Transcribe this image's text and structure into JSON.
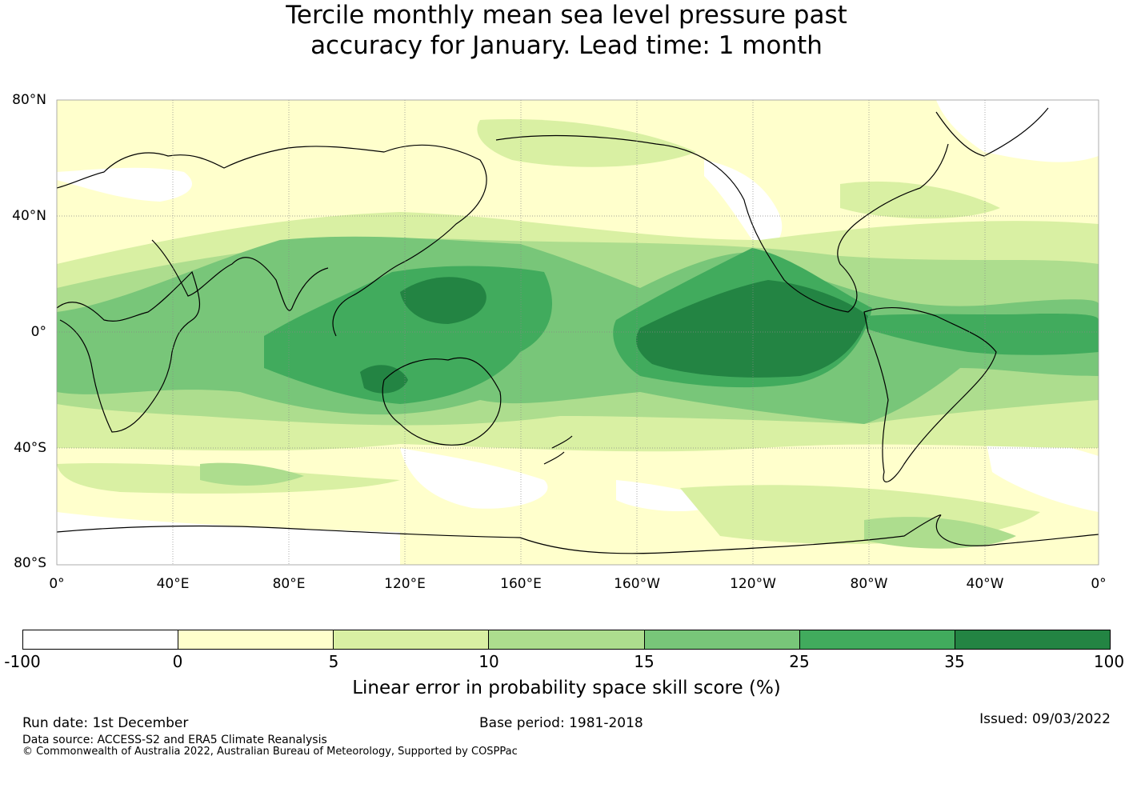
{
  "title": {
    "line1": "Tercile monthly mean sea level pressure past",
    "line2": "accuracy for January. Lead time: 1 month"
  },
  "map": {
    "lat_labels": [
      "80°N",
      "40°N",
      "0°",
      "40°S",
      "80°S"
    ],
    "lon_labels": [
      "0°",
      "40°E",
      "80°E",
      "120°E",
      "160°E",
      "160°W",
      "120°W",
      "80°W",
      "40°W",
      "0°"
    ]
  },
  "legend": {
    "colors": [
      "#ffffff",
      "#ffffcc",
      "#d9f0a3",
      "#addd8e",
      "#78c679",
      "#41ab5d",
      "#238443"
    ],
    "ticks": [
      "-100",
      "0",
      "5",
      "10",
      "15",
      "25",
      "35",
      "100"
    ],
    "label": "Linear error in probability space skill score (%)"
  },
  "footer": {
    "run_date": "Run date: 1st December",
    "base_period": "Base period: 1981-2018",
    "issued": "Issued: 09/03/2022",
    "data_source": "Data source: ACCESS-S2 and ERA5 Climate Reanalysis",
    "copyright": "© Commonwealth of Australia 2022, Australian Bureau of Meteorology, Supported by COSPPac"
  }
}
